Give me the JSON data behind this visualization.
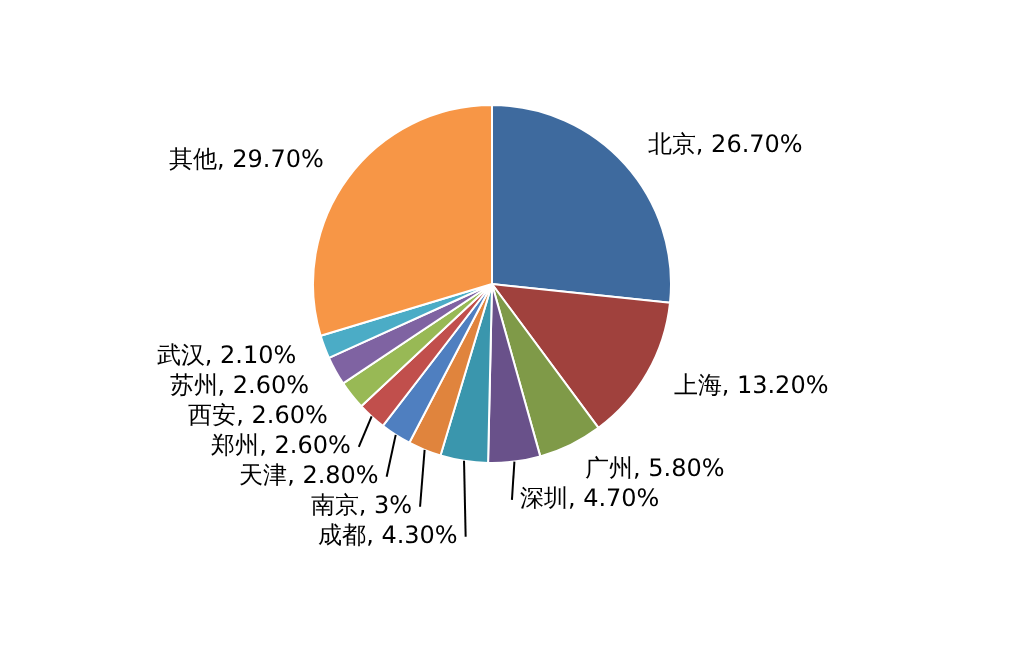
{
  "chart_data": {
    "type": "pie",
    "categories": [
      "北京",
      "上海",
      "广州",
      "深圳",
      "成都",
      "南京",
      "天津",
      "郑州",
      "西安",
      "苏州",
      "武汉",
      "其他"
    ],
    "values": [
      26.7,
      13.2,
      5.8,
      4.7,
      4.3,
      3,
      2.8,
      2.6,
      2.6,
      2.6,
      2.1,
      29.7
    ],
    "value_labels": [
      "26.70%",
      "13.20%",
      "5.80%",
      "4.70%",
      "4.30%",
      "3%",
      "2.80%",
      "2.60%",
      "2.60%",
      "2.60%",
      "2.10%",
      "29.70%"
    ],
    "colors": [
      "#3e6a9e",
      "#a0413d",
      "#7f9a48",
      "#69518a",
      "#3a96ad",
      "#e0843d",
      "#4f7fc0",
      "#c14f4c",
      "#98b955",
      "#7f63a2",
      "#4bacc6",
      "#f79646"
    ],
    "legend": false
  }
}
